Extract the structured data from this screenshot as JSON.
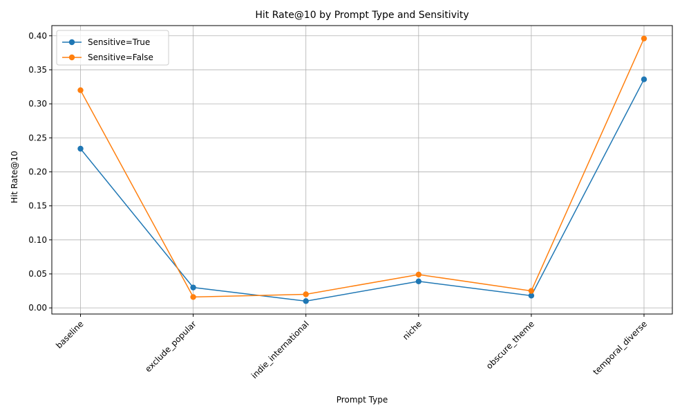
{
  "chart_data": {
    "type": "line",
    "title": "Hit Rate@10 by Prompt Type and Sensitivity",
    "xlabel": "Prompt Type",
    "ylabel": "Hit Rate@10",
    "categories": [
      "baseline",
      "exclude_popular",
      "indie_international",
      "niche",
      "obscure_theme",
      "temporal_diverse"
    ],
    "ylim": [
      -0.009,
      0.415
    ],
    "yticks": [
      "0.00",
      "0.05",
      "0.10",
      "0.15",
      "0.20",
      "0.25",
      "0.30",
      "0.35",
      "0.40"
    ],
    "grid": true,
    "legend_position": "upper-left",
    "series": [
      {
        "name": "Sensitive=True",
        "color": "#1f77b4",
        "values": [
          0.234,
          0.03,
          0.01,
          0.039,
          0.018,
          0.336
        ]
      },
      {
        "name": "Sensitive=False",
        "color": "#ff7f0e",
        "values": [
          0.32,
          0.016,
          0.02,
          0.049,
          0.025,
          0.396
        ]
      }
    ]
  }
}
